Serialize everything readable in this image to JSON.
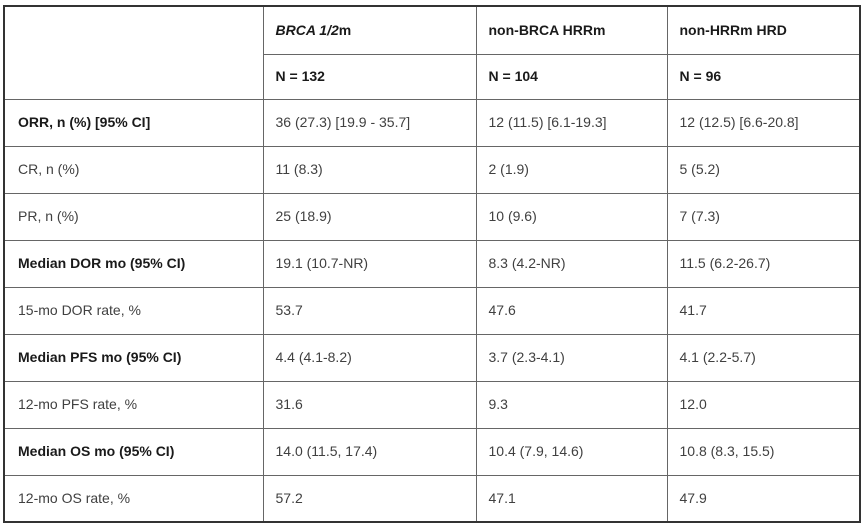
{
  "table": {
    "columns": {
      "corner": "",
      "group_headers": [
        {
          "segments": [
            {
              "text": "BRCA 1/2",
              "italic": true
            },
            {
              "text": "m",
              "italic": false
            }
          ]
        },
        {
          "segments": [
            {
              "text": "non-BRCA HRRm",
              "italic": false
            }
          ]
        },
        {
          "segments": [
            {
              "text": "non-HRRm HRD",
              "italic": false
            }
          ]
        }
      ],
      "n_headers": [
        "N = 132",
        "N = 104",
        "N = 96"
      ]
    },
    "rows": [
      {
        "label": "ORR, n (%) [95% CI]",
        "bold": true,
        "values": [
          "36 (27.3) [19.9 - 35.7]",
          "12 (11.5) [6.1-19.3]",
          "12 (12.5) [6.6-20.8]"
        ]
      },
      {
        "label": "CR, n (%)",
        "bold": false,
        "values": [
          "11 (8.3)",
          "2 (1.9)",
          "5 (5.2)"
        ]
      },
      {
        "label": "PR, n (%)",
        "bold": false,
        "values": [
          "25 (18.9)",
          "10 (9.6)",
          "7 (7.3)"
        ]
      },
      {
        "label": "Median DOR mo (95% CI)",
        "bold": true,
        "values": [
          "19.1 (10.7-NR)",
          "8.3 (4.2-NR)",
          "11.5 (6.2-26.7)"
        ]
      },
      {
        "label": "15-mo DOR rate, %",
        "bold": false,
        "values": [
          "53.7",
          "47.6",
          "41.7"
        ]
      },
      {
        "label": "Median PFS mo (95% CI)",
        "bold": true,
        "values": [
          "4.4 (4.1-8.2)",
          "3.7 (2.3-4.1)",
          "4.1 (2.2-5.7)"
        ]
      },
      {
        "label": "12-mo PFS rate, %",
        "bold": false,
        "values": [
          "31.6",
          "9.3",
          "12.0"
        ]
      },
      {
        "label": "Median OS mo (95% CI)",
        "bold": true,
        "values": [
          "14.0 (11.5, 17.4)",
          "10.4 (7.9, 14.6)",
          "10.8 (8.3, 15.5)"
        ]
      },
      {
        "label": "12-mo OS rate, %",
        "bold": false,
        "values": [
          "57.2",
          "47.1",
          "47.9"
        ]
      }
    ]
  },
  "colors": {
    "border_outer": "#333333",
    "border_inner": "#666666",
    "text": "#404040",
    "text_bold": "#1a1a1a",
    "background": "#ffffff"
  }
}
